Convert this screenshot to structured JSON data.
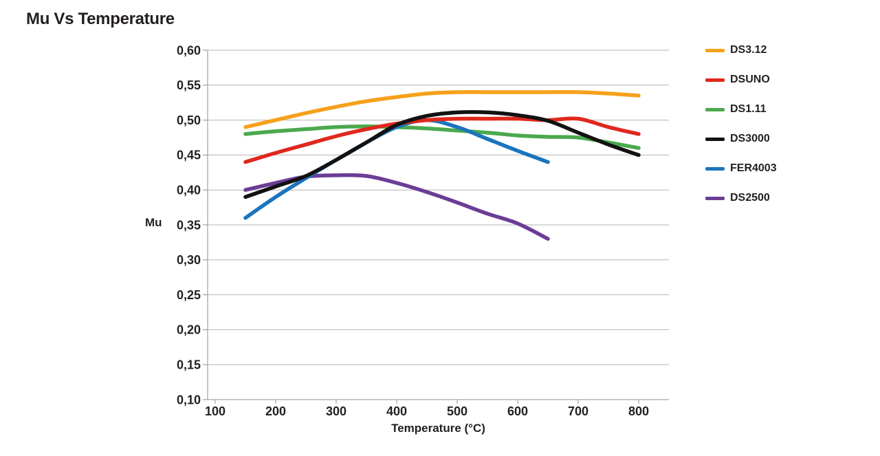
{
  "title": "Mu Vs Temperature",
  "colors": {
    "text": "#231f20",
    "grid": "#b3b3b3",
    "axis": "#8e8e8e",
    "background": "#ffffff"
  },
  "chart_data": {
    "type": "line",
    "title": "Mu Vs Temperature",
    "xlabel": "Temperature (°C)",
    "ylabel": "Mu",
    "xlim": [
      88,
      850
    ],
    "ylim": [
      0.1,
      0.6
    ],
    "grid": "horizontal",
    "legend_position": "right",
    "x_ticks": [
      100,
      200,
      300,
      400,
      500,
      600,
      700,
      800
    ],
    "x_tick_labels": [
      "100",
      "200",
      "300",
      "400",
      "500",
      "600",
      "700",
      "800"
    ],
    "y_ticks": [
      0.6,
      0.55,
      0.5,
      0.45,
      0.4,
      0.35,
      0.3,
      0.25,
      0.2,
      0.15,
      0.1
    ],
    "y_tick_labels": [
      "0,60",
      "0,55",
      "0,50",
      "0,45",
      "0,40",
      "0,35",
      "0,30",
      "0,25",
      "0,20",
      "0,15",
      "0,10"
    ],
    "series": [
      {
        "name": "DS3.12",
        "color": "#F6A01A",
        "x": [
          150,
          200,
          250,
          300,
          350,
          400,
          450,
          500,
          550,
          600,
          650,
          700,
          750,
          800
        ],
        "y": [
          0.49,
          0.5,
          0.51,
          0.519,
          0.527,
          0.533,
          0.538,
          0.54,
          0.54,
          0.54,
          0.54,
          0.54,
          0.538,
          0.535
        ]
      },
      {
        "name": "DSUNO",
        "color": "#E0281E",
        "x": [
          150,
          200,
          250,
          300,
          350,
          400,
          450,
          500,
          550,
          600,
          650,
          700,
          750,
          800
        ],
        "y": [
          0.44,
          0.453,
          0.465,
          0.477,
          0.487,
          0.495,
          0.5,
          0.502,
          0.502,
          0.502,
          0.5,
          0.502,
          0.49,
          0.48
        ]
      },
      {
        "name": "DS1.11",
        "color": "#4AA94D",
        "x": [
          150,
          200,
          250,
          300,
          350,
          400,
          450,
          500,
          550,
          600,
          650,
          700,
          750,
          800
        ],
        "y": [
          0.48,
          0.484,
          0.487,
          0.49,
          0.491,
          0.49,
          0.488,
          0.485,
          0.482,
          0.478,
          0.476,
          0.475,
          0.468,
          0.46
        ]
      },
      {
        "name": "DS3000",
        "color": "#121212",
        "x": [
          150,
          200,
          250,
          300,
          350,
          400,
          450,
          500,
          550,
          600,
          650,
          700,
          750,
          800
        ],
        "y": [
          0.39,
          0.405,
          0.42,
          0.443,
          0.468,
          0.493,
          0.506,
          0.511,
          0.511,
          0.507,
          0.499,
          0.482,
          0.465,
          0.45
        ]
      },
      {
        "name": "FER4003",
        "color": "#1B74BC",
        "x": [
          150,
          200,
          250,
          300,
          350,
          400,
          450,
          500,
          550,
          600,
          650
        ],
        "y": [
          0.36,
          0.39,
          0.417,
          0.443,
          0.468,
          0.49,
          0.5,
          0.49,
          0.473,
          0.456,
          0.44
        ]
      },
      {
        "name": "DS2500",
        "color": "#6B3D95",
        "x": [
          150,
          200,
          250,
          300,
          350,
          400,
          450,
          500,
          550,
          600,
          650
        ],
        "y": [
          0.4,
          0.41,
          0.419,
          0.421,
          0.42,
          0.41,
          0.397,
          0.382,
          0.366,
          0.352,
          0.33
        ]
      }
    ]
  }
}
